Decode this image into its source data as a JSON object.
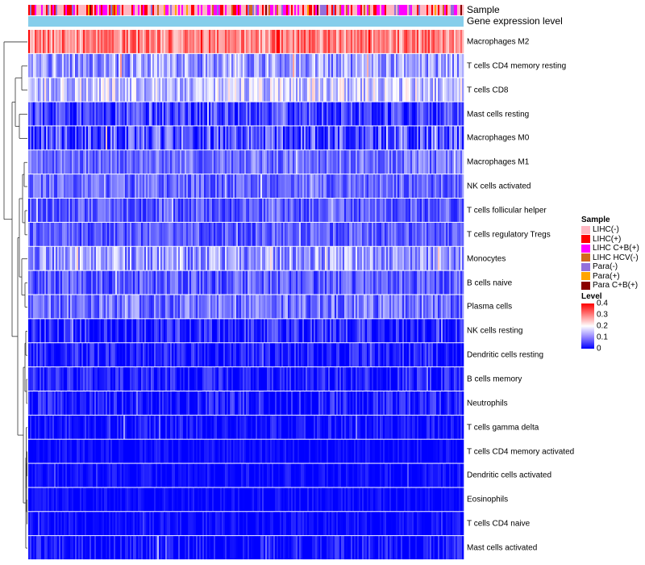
{
  "annotation_labels": {
    "sample": "Sample",
    "gene_expression": "Gene expression level"
  },
  "legend": {
    "sample_title": "Sample",
    "sample_items": [
      {
        "label": "LIHC(-)",
        "color": "#ffb6c1"
      },
      {
        "label": "LIHC(+)",
        "color": "#ff0000"
      },
      {
        "label": "LIHC C+B(+)",
        "color": "#ff00ff"
      },
      {
        "label": "LIHC HCV(-)",
        "color": "#d2691e"
      },
      {
        "label": "Para(-)",
        "color": "#9370db"
      },
      {
        "label": "Para(+)",
        "color": "#ffa500"
      },
      {
        "label": "Para C+B(+)",
        "color": "#8b0000"
      }
    ],
    "level_title": "Level",
    "level_ticks": [
      "0.4",
      "0.3",
      "0.2",
      "0.1",
      "0"
    ]
  },
  "colors": {
    "low": "#0000ff",
    "mid": "#ffffff",
    "high": "#ff0000",
    "gene_expression_bar": "#87ceeb"
  },
  "chart_data": {
    "type": "heatmap",
    "title": "",
    "top_annotations": [
      "Sample",
      "Gene expression level"
    ],
    "color_scale": {
      "name": "Level",
      "min": 0,
      "max": 0.4,
      "ticks": [
        0,
        0.1,
        0.2,
        0.3,
        0.4
      ]
    },
    "n_samples": 270,
    "rows": [
      {
        "name": "Macrophages M2",
        "mean": 0.3,
        "spread": 0.07
      },
      {
        "name": "T cells CD4 memory resting",
        "mean": 0.12,
        "spread": 0.07
      },
      {
        "name": "T cells CD8",
        "mean": 0.16,
        "spread": 0.07
      },
      {
        "name": "Mast cells resting",
        "mean": 0.05,
        "spread": 0.06
      },
      {
        "name": "Macrophages M0",
        "mean": 0.06,
        "spread": 0.08
      },
      {
        "name": "Macrophages M1",
        "mean": 0.09,
        "spread": 0.05
      },
      {
        "name": "NK cells activated",
        "mean": 0.08,
        "spread": 0.05
      },
      {
        "name": "T cells follicular helper",
        "mean": 0.07,
        "spread": 0.05
      },
      {
        "name": "T cells regulatory  Tregs",
        "mean": 0.07,
        "spread": 0.05
      },
      {
        "name": "Monocytes",
        "mean": 0.12,
        "spread": 0.07
      },
      {
        "name": "B cells naive",
        "mean": 0.07,
        "spread": 0.05
      },
      {
        "name": "Plasma cells",
        "mean": 0.09,
        "spread": 0.06
      },
      {
        "name": "NK cells resting",
        "mean": 0.03,
        "spread": 0.06
      },
      {
        "name": "Dendritic cells resting",
        "mean": 0.02,
        "spread": 0.05
      },
      {
        "name": "B cells memory",
        "mean": 0.02,
        "spread": 0.05
      },
      {
        "name": "Neutrophils",
        "mean": 0.02,
        "spread": 0.05
      },
      {
        "name": "T cells gamma delta",
        "mean": 0.01,
        "spread": 0.04
      },
      {
        "name": "T cells CD4 memory activated",
        "mean": 0.005,
        "spread": 0.03
      },
      {
        "name": "Dendritic cells activated",
        "mean": 0.005,
        "spread": 0.03
      },
      {
        "name": "Eosinophils",
        "mean": 0.005,
        "spread": 0.025
      },
      {
        "name": "T cells CD4 naive",
        "mean": 0.005,
        "spread": 0.03
      },
      {
        "name": "Mast cells activated",
        "mean": 0.01,
        "spread": 0.05
      }
    ],
    "row_dendrogram": true
  }
}
